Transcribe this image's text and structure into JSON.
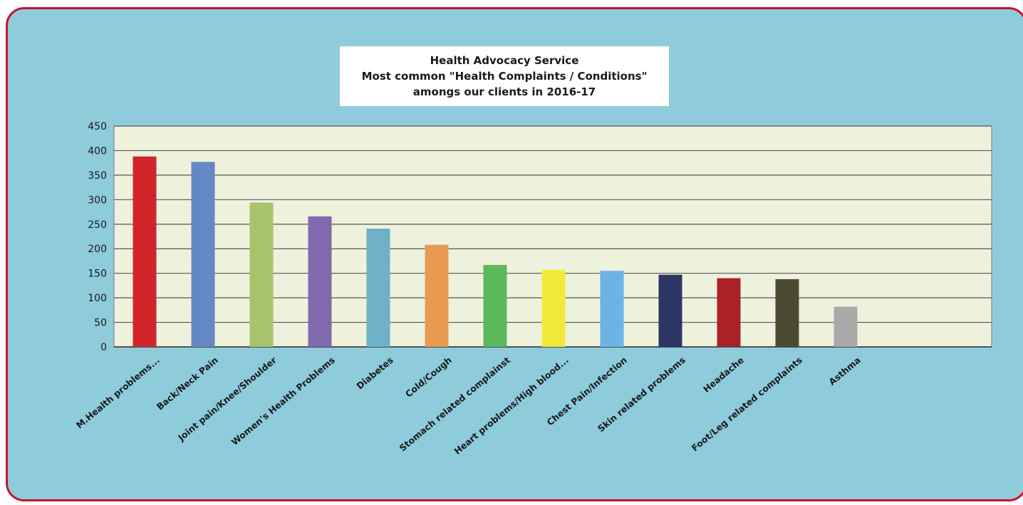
{
  "title_lines": [
    "Health Advocacy Service",
    "Most common \"Health Complaints / Conditions\"",
    "amongs our clients in 2016-17"
  ],
  "colors": {
    "panel_background": "#8ecbdb",
    "panel_border": "#c8102e",
    "plot_background": "#eef2dc",
    "gridline": "#555555"
  },
  "chart_data": {
    "type": "bar",
    "title": "Health Advocacy Service Most common \"Health Complaints / Conditions\" amongs our clients in 2016-17",
    "xlabel": "",
    "ylabel": "",
    "ylim": [
      0,
      450
    ],
    "yticks": [
      0,
      50,
      100,
      150,
      200,
      250,
      300,
      350,
      400,
      450
    ],
    "grid": true,
    "legend": "none",
    "categories": [
      "M.Health problems...",
      "Back/Neck Pain",
      "Joint pain/Knee/Shoulder",
      "Women's Health Problems",
      "Diabetes",
      "Cold/Cough",
      "Stomach related complainst",
      "Heart problems/High blood...",
      "Chest Pain/Infection",
      "Skin related problems",
      "Headache",
      "Foot/Leg related complaints",
      "Asthma"
    ],
    "values": [
      388,
      377,
      294,
      266,
      241,
      208,
      167,
      157,
      155,
      147,
      140,
      138,
      82
    ],
    "bar_colors": [
      "#d0262b",
      "#6488c3",
      "#a7c46a",
      "#8169ad",
      "#6fb1c7",
      "#e79a52",
      "#5cb95a",
      "#f3e93c",
      "#6cb3e6",
      "#2c3564",
      "#a82228",
      "#4b4a31",
      "#a9a9a9"
    ]
  }
}
